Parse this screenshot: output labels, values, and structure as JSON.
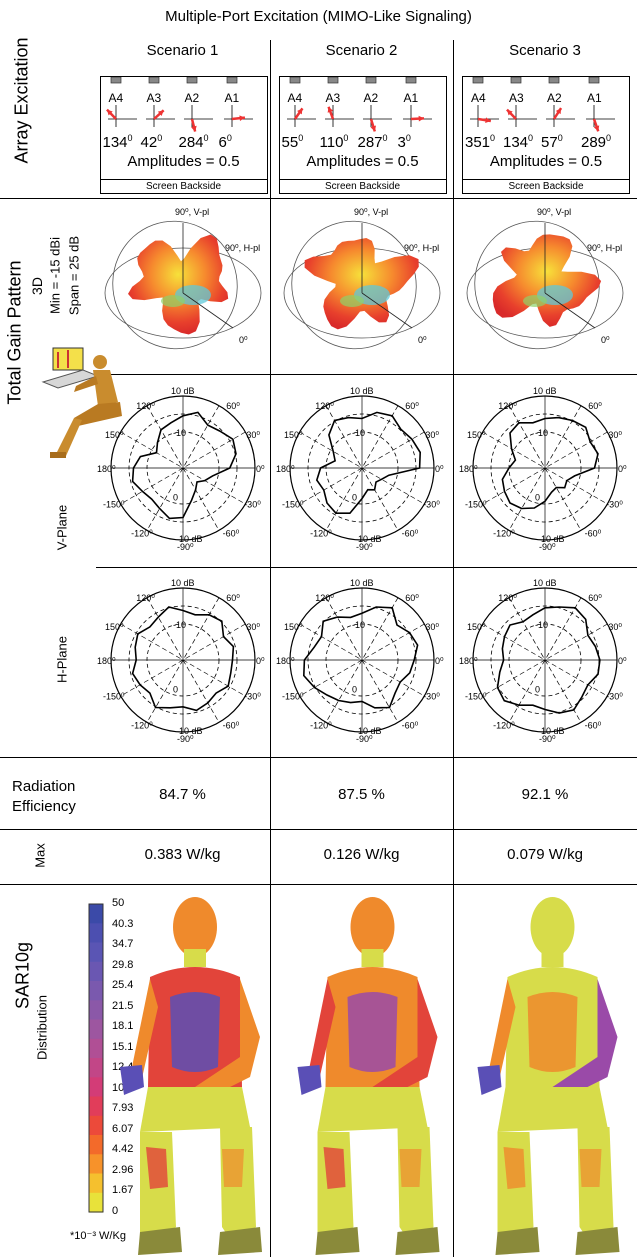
{
  "title": "Multiple-Port Excitation (MIMO-Like Signaling)",
  "row_labels": {
    "array_excitation": "Array Excitation",
    "total_gain_pattern": "Total Gain Pattern",
    "three_d": "3D",
    "min": "Min = -15 dBi",
    "span": "Span = 25 dB",
    "v_plane": "V-Plane",
    "h_plane": "H-Plane",
    "radiation": "Radiation",
    "efficiency": "Efficiency",
    "max": "Max",
    "sar": "SAR10g",
    "distribution": "Distribution"
  },
  "scenarios": [
    {
      "name": "Scenario 1",
      "phases": [
        "134",
        "42",
        "284",
        "6"
      ],
      "efficiency": "84.7 %",
      "max_sar": "0.383 W/kg"
    },
    {
      "name": "Scenario 2",
      "phases": [
        "55",
        "110",
        "287",
        "3"
      ],
      "efficiency": "87.5 %",
      "max_sar": "0.126 W/kg"
    },
    {
      "name": "Scenario 3",
      "phases": [
        "351",
        "134",
        "57",
        "289"
      ],
      "efficiency": "92.1 %",
      "max_sar": "0.079 W/kg"
    }
  ],
  "ports": [
    "A4",
    "A3",
    "A2",
    "A1"
  ],
  "amplitudes": "Amplitudes = 0.5",
  "screen_backside": "Screen Backside",
  "degree_sup": "0",
  "pattern3d_labels": {
    "v": "90⁰, V-pl",
    "h": "90⁰, H-pl",
    "zero": "0⁰"
  },
  "polar_labels": {
    "top_db": "10 dB",
    "bottom_db": "10 dB",
    "ring_minus10": "-10",
    "ring_0": "0",
    "a90": "90⁰",
    "a120": "120⁰",
    "a60": "60⁰",
    "a150": "150⁰",
    "a30": "30⁰",
    "a180": "180⁰",
    "a0": "0⁰",
    "am150": "-150⁰",
    "am30": "-30⁰",
    "am120": "-120⁰",
    "am60": "-60⁰",
    "am90": "-90⁰"
  },
  "sar_legend": {
    "ticks": [
      "50",
      "40.3",
      "34.7",
      "29.8",
      "25.4",
      "21.5",
      "18.1",
      "15.1",
      "12.4",
      "10",
      "7.93",
      "6.07",
      "4.42",
      "2.96",
      "1.67",
      "0"
    ],
    "unit": "*10⁻³ W/Kg",
    "colors": [
      "#3b4aa8",
      "#4c4fb0",
      "#5a55b4",
      "#6a57b2",
      "#7a59ae",
      "#8b58a8",
      "#9d56a0",
      "#b04f95",
      "#c24687",
      "#d33c77",
      "#e13d5a",
      "#ec4a3a",
      "#f36a2a",
      "#f7922a",
      "#f5c02e",
      "#e8e23a"
    ]
  },
  "chart_data": {
    "type": "polar",
    "r_range_db": [
      -10,
      10
    ],
    "v_plane_gain_db": [
      [
        2,
        5,
        6,
        4,
        3,
        6,
        4,
        2,
        1,
        -2,
        -4,
        1,
        3,
        4,
        2,
        1,
        2,
        4,
        3,
        -3,
        -6,
        -8,
        -6,
        -4
      ],
      [
        6,
        7,
        6,
        5,
        7,
        6,
        3,
        4,
        5,
        2,
        -3,
        -5,
        0,
        2,
        1,
        3,
        4,
        2,
        -4,
        -7,
        -6,
        -8,
        -7,
        -5
      ],
      [
        3,
        5,
        4,
        6,
        5,
        4,
        3,
        2,
        4,
        3,
        -1,
        -4,
        -2,
        1,
        2,
        3,
        2,
        0,
        -3,
        -6,
        -7,
        -5,
        -6,
        -4
      ]
    ],
    "h_plane_gain_db": [
      [
        3,
        4,
        2,
        5,
        4,
        2,
        3,
        5,
        3,
        2,
        4,
        3,
        2,
        4,
        3,
        2,
        5,
        3,
        2,
        4,
        3,
        2,
        4,
        3
      ],
      [
        4,
        6,
        5,
        3,
        7,
        5,
        2,
        1,
        3,
        5,
        2,
        3,
        6,
        7,
        5,
        3,
        2,
        1,
        0,
        3,
        5,
        2,
        1,
        3
      ],
      [
        5,
        4,
        3,
        6,
        7,
        5,
        4,
        2,
        1,
        3,
        2,
        1,
        0,
        2,
        5,
        6,
        4,
        2,
        3,
        5,
        6,
        4,
        3,
        5
      ]
    ]
  }
}
